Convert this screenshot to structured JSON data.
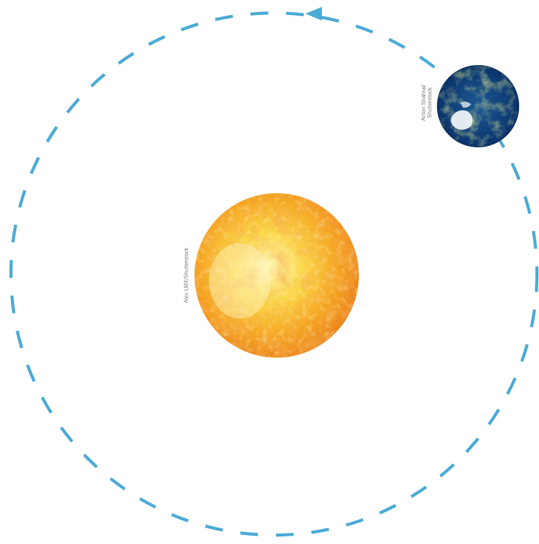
{
  "credits": {
    "sun": "Alex LMX/Shutterstock",
    "earth_line1": "Anton Shahrai/",
    "earth_line2": "Shutterstock"
  },
  "colors": {
    "orbit": "#4aaad6",
    "sun_light": "#fff3a0",
    "sun_mid": "#f9c316",
    "sun_dark": "#e8731a",
    "earth_ocean": "#0d3a73",
    "earth_land": "#4b6b3a",
    "earth_ice": "#eef3f8"
  },
  "icons": [
    "orbit-path",
    "orbit-direction-arrow-icon",
    "sun-icon",
    "earth-icon"
  ]
}
